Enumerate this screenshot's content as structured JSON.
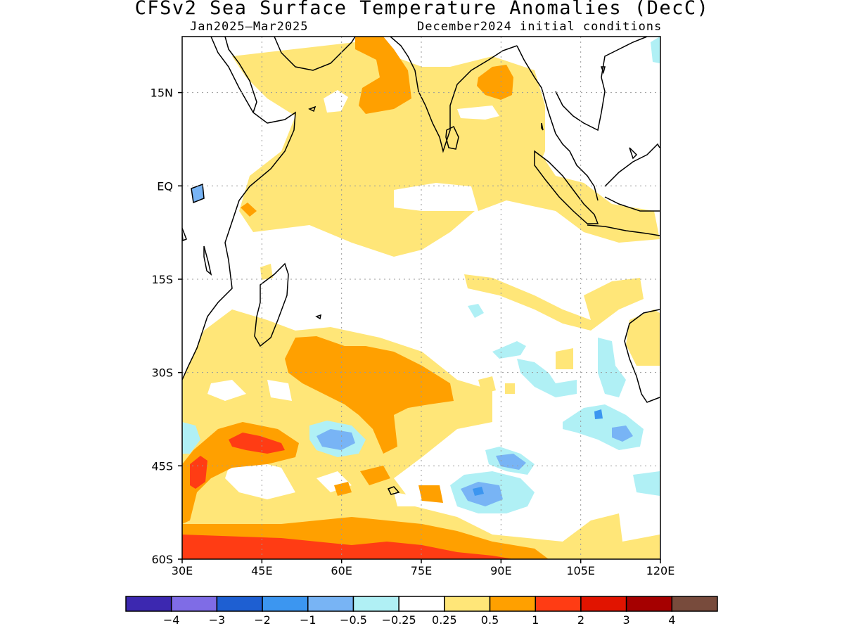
{
  "title": "CFSv2 Sea Surface Temperature Anomalies (DecC)",
  "subtitle_left": "Jan2025–Mar2025",
  "subtitle_right": "December2024 initial conditions",
  "map": {
    "lon_range": [
      30,
      120
    ],
    "lat_range": [
      -60,
      24
    ],
    "x_ticks": [
      {
        "value": 30,
        "label": "30E"
      },
      {
        "value": 45,
        "label": "45E"
      },
      {
        "value": 60,
        "label": "60E"
      },
      {
        "value": 75,
        "label": "75E"
      },
      {
        "value": 90,
        "label": "90E"
      },
      {
        "value": 105,
        "label": "105E"
      },
      {
        "value": 120,
        "label": "120E"
      }
    ],
    "y_ticks": [
      {
        "value": 15,
        "label": "15N"
      },
      {
        "value": 0,
        "label": "EQ"
      },
      {
        "value": -15,
        "label": "15S"
      },
      {
        "value": -30,
        "label": "30S"
      },
      {
        "value": -45,
        "label": "45S"
      },
      {
        "value": -60,
        "label": "60S"
      }
    ],
    "grid": true
  },
  "legend": {
    "colors": [
      "#3c28b0",
      "#7f6ce6",
      "#1e5fd2",
      "#3c96f0",
      "#78b4f5",
      "#b0f0f5",
      "#ffffff",
      "#ffe678",
      "#ffa000",
      "#ff3c14",
      "#e11400",
      "#a50000",
      "#784b3c"
    ],
    "labels": [
      "-4",
      "-3",
      "-2",
      "-1",
      "-0.5",
      "-0.25",
      "0.25",
      "0.5",
      "1",
      "2",
      "3",
      "4"
    ]
  }
}
